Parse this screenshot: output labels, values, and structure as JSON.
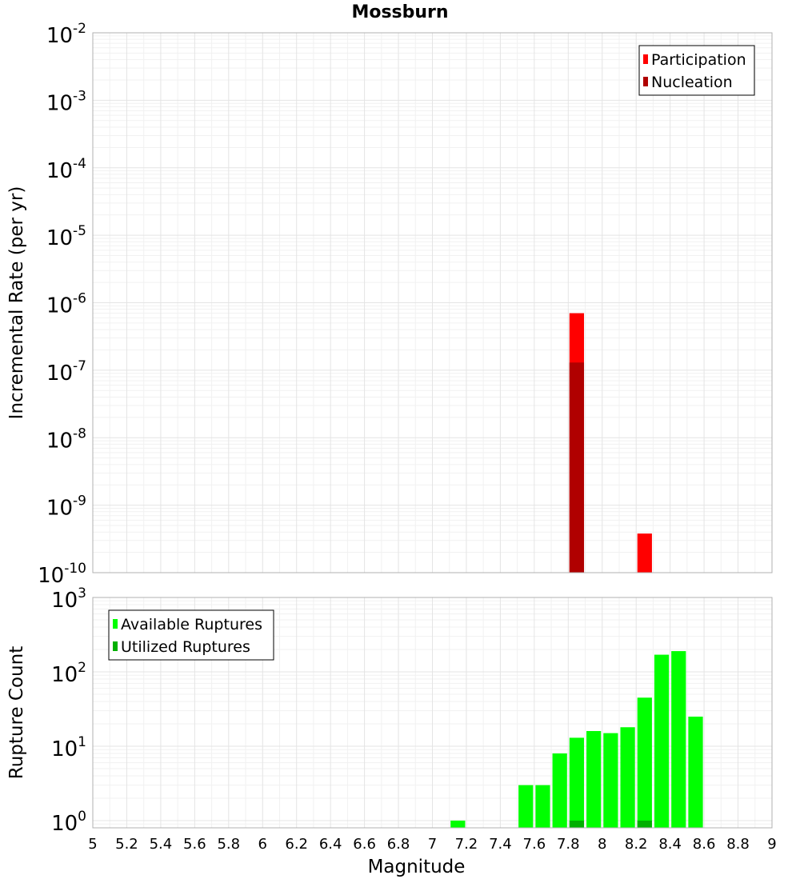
{
  "chart_data": [
    {
      "type": "bar",
      "title": "Mossburn",
      "ylabel": "Incremental Rate (per yr)",
      "xlabel": "",
      "yscale": "log",
      "ylim": [
        1e-10,
        0.01
      ],
      "xlim": [
        5,
        9
      ],
      "bin_width": 0.1,
      "grid": true,
      "legend_position": "top-right",
      "y_ticks": [
        {
          "value": 1e-10,
          "base": "10",
          "exp": "-10"
        },
        {
          "value": 1e-09,
          "base": "10",
          "exp": "-9"
        },
        {
          "value": 1e-08,
          "base": "10",
          "exp": "-8"
        },
        {
          "value": 1e-07,
          "base": "10",
          "exp": "-7"
        },
        {
          "value": 1e-06,
          "base": "10",
          "exp": "-6"
        },
        {
          "value": 1e-05,
          "base": "10",
          "exp": "-5"
        },
        {
          "value": 0.0001,
          "base": "10",
          "exp": "-4"
        },
        {
          "value": 0.001,
          "base": "10",
          "exp": "-3"
        },
        {
          "value": 0.01,
          "base": "10",
          "exp": "-2"
        }
      ],
      "series": [
        {
          "name": "Participation",
          "color": "#ff0000",
          "x": [
            7.85,
            8.25
          ],
          "values": [
            7e-07,
            3.8e-10
          ]
        },
        {
          "name": "Nucleation",
          "color": "#b00000",
          "x": [
            7.85
          ],
          "values": [
            1.3e-07
          ]
        }
      ]
    },
    {
      "type": "bar",
      "title": "",
      "ylabel": "Rupture Count",
      "xlabel": "Magnitude",
      "yscale": "log",
      "ylim": [
        0.8,
        1000
      ],
      "xlim": [
        5,
        9
      ],
      "bin_width": 0.1,
      "grid": true,
      "legend_position": "top-left",
      "x_ticks": [
        "5",
        "5.2",
        "5.4",
        "5.6",
        "5.8",
        "6",
        "6.2",
        "6.4",
        "6.6",
        "6.8",
        "7",
        "7.2",
        "7.4",
        "7.6",
        "7.8",
        "8",
        "8.2",
        "8.4",
        "8.6",
        "8.8",
        "9"
      ],
      "y_ticks": [
        {
          "value": 1,
          "base": "10",
          "exp": "0"
        },
        {
          "value": 10,
          "base": "10",
          "exp": "1"
        },
        {
          "value": 100,
          "base": "10",
          "exp": "2"
        },
        {
          "value": 1000,
          "base": "10",
          "exp": "3"
        }
      ],
      "series": [
        {
          "name": "Available Ruptures",
          "color": "#00ff00",
          "x": [
            7.15,
            7.55,
            7.65,
            7.75,
            7.85,
            7.95,
            8.05,
            8.15,
            8.25,
            8.35,
            8.45,
            8.55
          ],
          "values": [
            1,
            3,
            3,
            8,
            13,
            16,
            15,
            18,
            45,
            170,
            190,
            25
          ]
        },
        {
          "name": "Utilized Ruptures",
          "color": "#00b000",
          "x": [
            7.85,
            8.25
          ],
          "values": [
            1,
            1
          ]
        }
      ]
    }
  ]
}
